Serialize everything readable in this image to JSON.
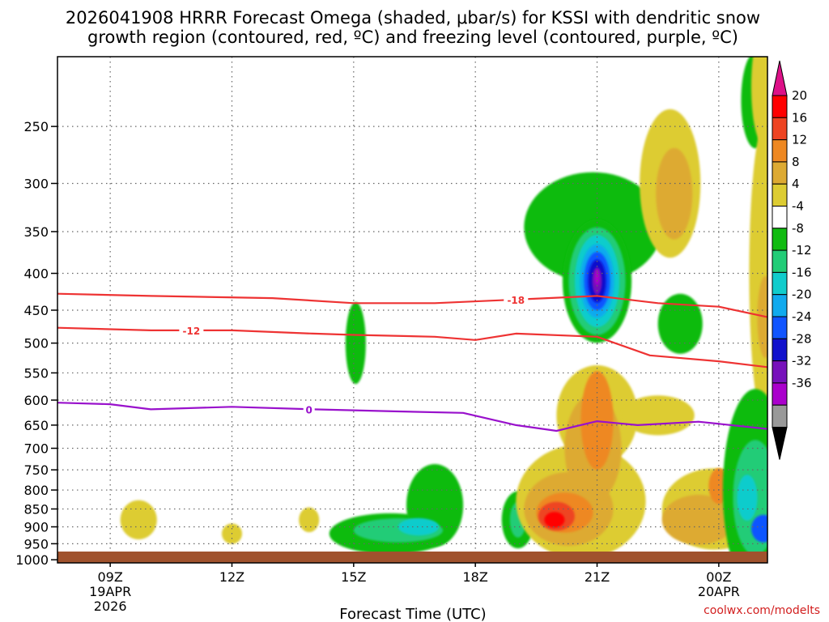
{
  "chart_data": {
    "type": "heatmap",
    "title_line1": "2026041908 HRRR Forecast Omega (shaded, μbar/s) for KSSI with dendritic snow",
    "title_line2": "growth region (contoured, red, ºC) and freezing level (contoured, purple, ºC)",
    "xlabel": "Forecast Time (UTC)",
    "credit": "coolwx.com/modelts",
    "x_range_hours": [
      -1.3,
      16.2
    ],
    "x_ticks": [
      {
        "hour": 0,
        "label": "09Z",
        "sub1": "19APR",
        "sub2": "2026"
      },
      {
        "hour": 3,
        "label": "12Z",
        "sub1": "",
        "sub2": ""
      },
      {
        "hour": 6,
        "label": "15Z",
        "sub1": "",
        "sub2": ""
      },
      {
        "hour": 9,
        "label": "18Z",
        "sub1": "",
        "sub2": ""
      },
      {
        "hour": 12,
        "label": "21Z",
        "sub1": "",
        "sub2": ""
      },
      {
        "hour": 15,
        "label": "00Z",
        "sub1": "20APR",
        "sub2": ""
      }
    ],
    "y_range_hpa": [
      200,
      1010
    ],
    "y_ticks": [
      250,
      300,
      350,
      400,
      450,
      500,
      550,
      600,
      650,
      700,
      750,
      800,
      850,
      900,
      950,
      1000
    ],
    "y_labels": [
      "250",
      "300",
      "350",
      "400",
      "450",
      "500",
      "550",
      "600",
      "650",
      "700",
      "750",
      "800",
      "850",
      "900",
      "950",
      "1000"
    ],
    "colorbar_labels": [
      "20",
      "16",
      "12",
      "8",
      "4",
      "-4",
      "-8",
      "-12",
      "-16",
      "-20",
      "-24",
      "-28",
      "-32",
      "-36"
    ],
    "colorbar_colors": [
      "#ff0000",
      "#ee4422",
      "#ee8822",
      "#ddaa33",
      "#ddcc33",
      "#ffffff",
      "#11bb11",
      "#22cc77",
      "#11cccc",
      "#11aaee",
      "#1155ff",
      "#1111cc",
      "#7711bb",
      "#aa00cc",
      "#999999"
    ],
    "colorbar_top_color": "#dd1188",
    "colorbar_bottom_color": "#000000",
    "omega_blobs": [
      {
        "hour": 0.7,
        "p": 880,
        "dh": 0.45,
        "dp": 55,
        "value": 5
      },
      {
        "hour": 3.0,
        "p": 920,
        "dh": 0.25,
        "dp": 30,
        "value": 5
      },
      {
        "hour": 4.9,
        "p": 880,
        "dh": 0.25,
        "dp": 35,
        "value": 5
      },
      {
        "hour": 6.9,
        "p": 920,
        "dh": 1.5,
        "dp": 60,
        "value": -7
      },
      {
        "hour": 8.0,
        "p": 840,
        "dh": 0.7,
        "dp": 110,
        "value": -7
      },
      {
        "hour": 7.1,
        "p": 910,
        "dh": 1.1,
        "dp": 35,
        "value": -11
      },
      {
        "hour": 7.6,
        "p": 900,
        "dh": 0.5,
        "dp": 25,
        "value": -14
      },
      {
        "hour": 6.05,
        "p": 500,
        "dh": 0.25,
        "dp": 65,
        "value": -6
      },
      {
        "hour": 10.05,
        "p": 880,
        "dh": 0.4,
        "dp": 80,
        "value": -7
      },
      {
        "hour": 10.05,
        "p": 880,
        "dh": 0.2,
        "dp": 50,
        "value": -11
      },
      {
        "hour": 11.6,
        "p": 830,
        "dh": 1.6,
        "dp": 150,
        "value": 5
      },
      {
        "hour": 12.0,
        "p": 630,
        "dh": 1.0,
        "dp": 100,
        "value": 5
      },
      {
        "hour": 11.3,
        "p": 850,
        "dh": 1.1,
        "dp": 100,
        "value": 9
      },
      {
        "hour": 11.9,
        "p": 700,
        "dh": 0.7,
        "dp": 120,
        "value": 9
      },
      {
        "hour": 11.2,
        "p": 860,
        "dh": 0.7,
        "dp": 55,
        "value": 13
      },
      {
        "hour": 12.0,
        "p": 640,
        "dh": 0.4,
        "dp": 100,
        "value": 13
      },
      {
        "hour": 11.0,
        "p": 870,
        "dh": 0.45,
        "dp": 40,
        "value": 17
      },
      {
        "hour": 10.95,
        "p": 880,
        "dh": 0.25,
        "dp": 22,
        "value": 22
      },
      {
        "hour": 13.5,
        "p": 630,
        "dh": 0.9,
        "dp": 40,
        "value": 5
      },
      {
        "hour": 14.9,
        "p": 850,
        "dh": 1.3,
        "dp": 110,
        "value": 5
      },
      {
        "hour": 14.5,
        "p": 880,
        "dh": 0.9,
        "dp": 70,
        "value": 9
      },
      {
        "hour": 15.0,
        "p": 790,
        "dh": 0.25,
        "dp": 45,
        "value": 13
      },
      {
        "hour": 11.9,
        "p": 345,
        "dh": 1.7,
        "dp": 60,
        "value": -6
      },
      {
        "hour": 12.0,
        "p": 410,
        "dh": 0.85,
        "dp": 80,
        "value": -7
      },
      {
        "hour": 12.0,
        "p": 410,
        "dh": 0.7,
        "dp": 70,
        "value": -10
      },
      {
        "hour": 12.0,
        "p": 410,
        "dh": 0.55,
        "dp": 60,
        "value": -14
      },
      {
        "hour": 12.0,
        "p": 410,
        "dh": 0.42,
        "dp": 48,
        "value": -18
      },
      {
        "hour": 12.0,
        "p": 410,
        "dh": 0.32,
        "dp": 38,
        "value": -22
      },
      {
        "hour": 12.0,
        "p": 410,
        "dh": 0.22,
        "dp": 28,
        "value": -26
      },
      {
        "hour": 12.0,
        "p": 410,
        "dh": 0.12,
        "dp": 18,
        "value": -30
      },
      {
        "hour": 12.0,
        "p": 405,
        "dh": 0.06,
        "dp": 10,
        "value": -34
      },
      {
        "hour": 13.8,
        "p": 300,
        "dh": 0.75,
        "dp": 70,
        "value": 5
      },
      {
        "hour": 13.9,
        "p": 310,
        "dh": 0.45,
        "dp": 45,
        "value": 9
      },
      {
        "hour": 14.05,
        "p": 470,
        "dh": 0.55,
        "dp": 45,
        "value": -6
      },
      {
        "hour": 15.9,
        "p": 230,
        "dh": 0.35,
        "dp": 35,
        "value": -6
      },
      {
        "hour": 16.15,
        "p": 400,
        "dh": 0.4,
        "dp": 180,
        "value": 5
      },
      {
        "hour": 16.15,
        "p": 460,
        "dh": 0.2,
        "dp": 60,
        "value": 9
      },
      {
        "hour": 16.1,
        "p": 220,
        "dh": 0.3,
        "dp": 40,
        "value": 5
      },
      {
        "hour": 15.9,
        "p": 800,
        "dh": 0.8,
        "dp": 250,
        "value": -6
      },
      {
        "hour": 15.9,
        "p": 820,
        "dh": 0.55,
        "dp": 150,
        "value": -10
      },
      {
        "hour": 15.7,
        "p": 820,
        "dh": 0.25,
        "dp": 60,
        "value": -15
      },
      {
        "hour": 16.1,
        "p": 905,
        "dh": 0.3,
        "dp": 40,
        "value": -20
      }
    ],
    "contours": [
      {
        "label": "-18",
        "color": "#ee3333",
        "label_hour": 10.0,
        "points": [
          [
            -1.3,
            427
          ],
          [
            1,
            430
          ],
          [
            4,
            433
          ],
          [
            6,
            440
          ],
          [
            8,
            440
          ],
          [
            10,
            435
          ],
          [
            12,
            430
          ],
          [
            13.5,
            440
          ],
          [
            15,
            445
          ],
          [
            16.2,
            460
          ]
        ]
      },
      {
        "label": "-12",
        "color": "#ee3333",
        "label_hour": 2.0,
        "points": [
          [
            -1.3,
            476
          ],
          [
            1,
            480
          ],
          [
            3,
            480
          ],
          [
            5,
            485
          ],
          [
            6,
            487
          ],
          [
            8,
            490
          ],
          [
            9,
            495
          ],
          [
            10,
            485
          ],
          [
            12,
            490
          ],
          [
            13.3,
            520
          ],
          [
            15,
            530
          ],
          [
            16.2,
            540
          ]
        ]
      },
      {
        "label": "0",
        "color": "#9911cc",
        "label_hour": 4.9,
        "points": [
          [
            -1.3,
            605
          ],
          [
            0,
            608
          ],
          [
            1,
            618
          ],
          [
            3,
            613
          ],
          [
            5,
            618
          ],
          [
            7,
            622
          ],
          [
            8.7,
            625
          ],
          [
            10,
            650
          ],
          [
            11,
            662
          ],
          [
            12,
            642
          ],
          [
            13,
            650
          ],
          [
            14.5,
            643
          ],
          [
            16.2,
            658
          ]
        ]
      }
    ]
  }
}
